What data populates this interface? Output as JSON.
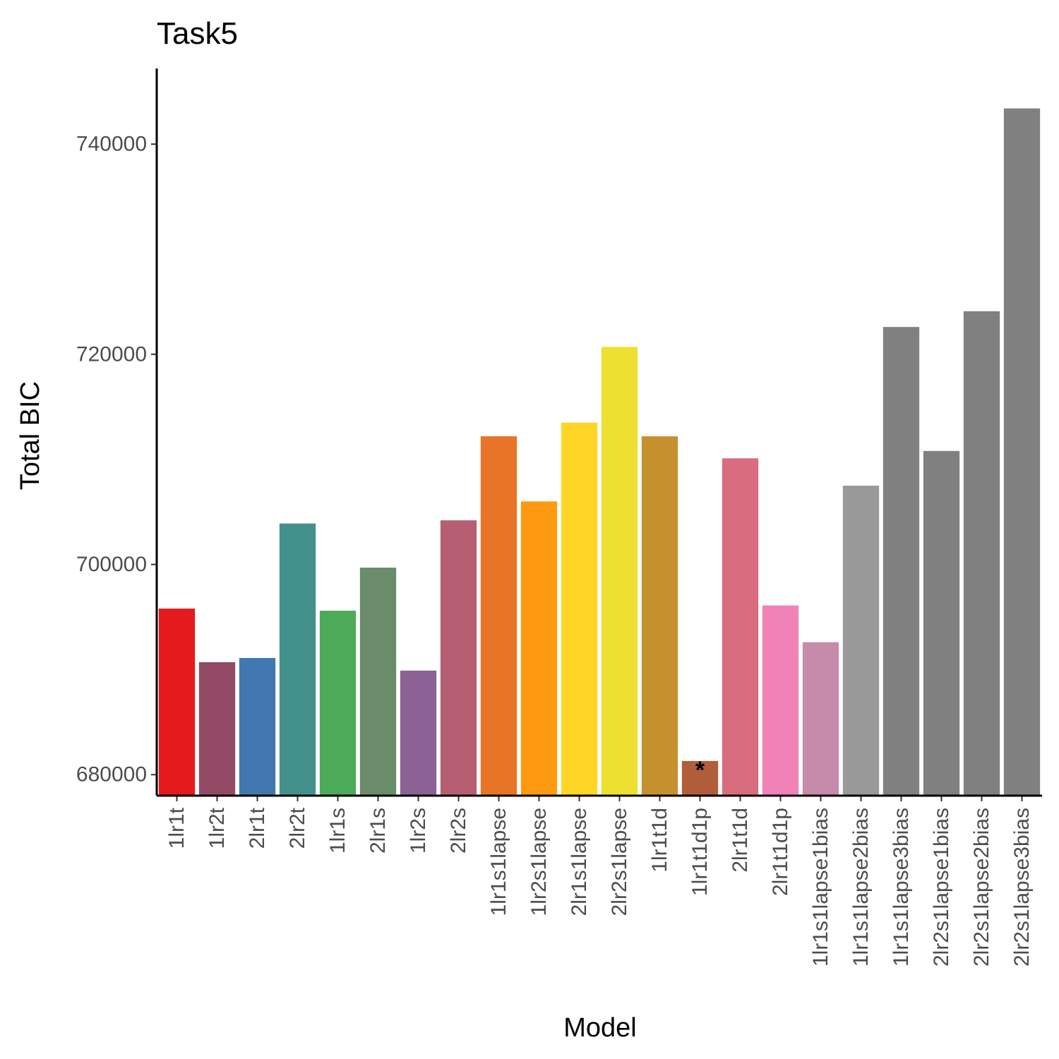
{
  "chart_data": {
    "type": "bar",
    "title": "Task5",
    "xlabel": "Model",
    "ylabel": "Total BIC",
    "ylim": [
      678000,
      747200
    ],
    "yticks": [
      680000,
      700000,
      720000,
      740000
    ],
    "ytick_labels": [
      "680000",
      "700000",
      "720000",
      "740000"
    ],
    "grid": false,
    "legend": "none",
    "categories": [
      "1lr1t",
      "1lr2t",
      "2lr1t",
      "2lr2t",
      "1lr1s",
      "2lr1s",
      "1lr2s",
      "2lr2s",
      "1lr1s1lapse",
      "1lr2s1lapse",
      "2lr1s1lapse",
      "2lr2s1lapse",
      "1lr1t1d",
      "1lr1t1d1p",
      "2lr1t1d",
      "2lr1t1d1p",
      "1lr1s1lapse1bias",
      "1lr1s1lapse2bias",
      "1lr1s1lapse3bias",
      "2lr2s1lapse1bias",
      "2lr2s1lapse2bias",
      "2lr2s1lapse3bias"
    ],
    "values": [
      695800,
      690700,
      691100,
      703900,
      695600,
      699700,
      689900,
      704200,
      712200,
      706000,
      713500,
      720700,
      712200,
      681300,
      710100,
      696100,
      692600,
      707500,
      722600,
      710800,
      724100,
      743400
    ],
    "colors": [
      "#e41a1c",
      "#934a64",
      "#4278b0",
      "#42918a",
      "#4daa58",
      "#6a8c6b",
      "#8b6196",
      "#b75f72",
      "#e77427",
      "#fe9a11",
      "#ffd626",
      "#eee030",
      "#c5912f",
      "#b15d3a",
      "#d76d7e",
      "#f082b8",
      "#c68aab",
      "#999999",
      "#808080",
      "#808080",
      "#808080",
      "#808080"
    ],
    "annotations": [
      {
        "category": "1lr1t1d1p",
        "text": "*"
      }
    ]
  }
}
